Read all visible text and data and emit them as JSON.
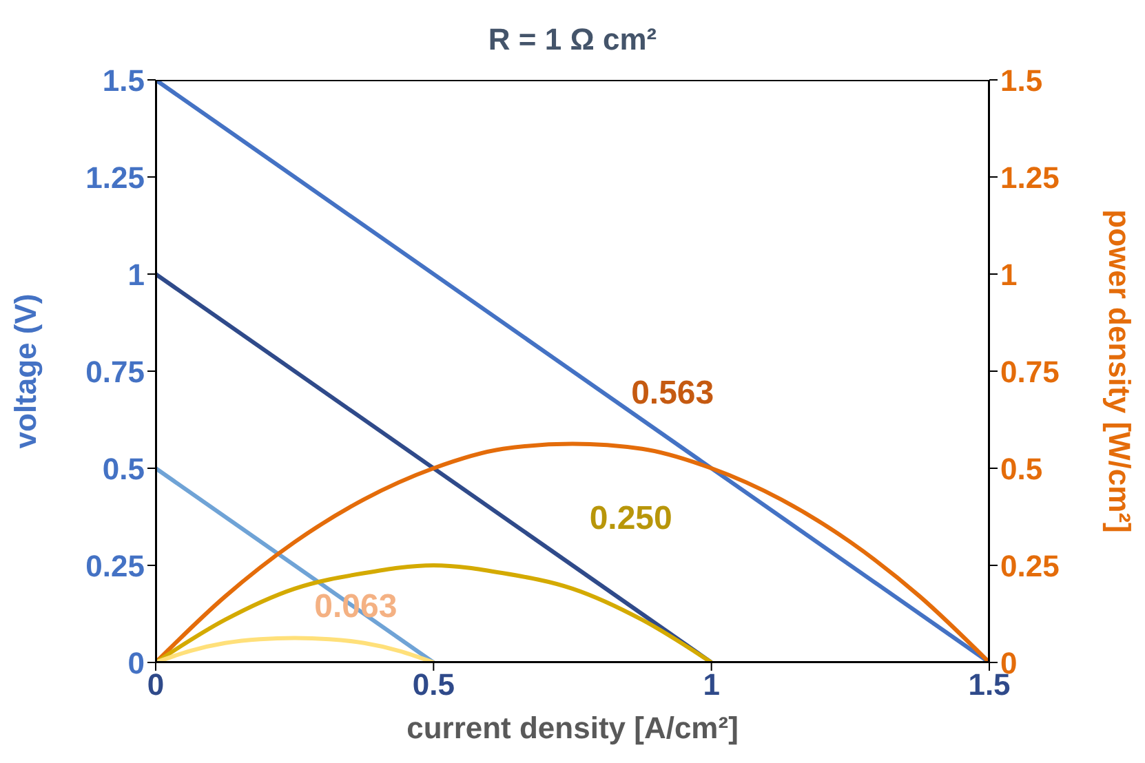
{
  "chart_data": {
    "type": "line",
    "title": "R = 1 Ω cm²",
    "xlabel": "current density [A/cm²]",
    "ylabel": "voltage (V)",
    "y2label": "power density [W/cm²]",
    "xlim": [
      0,
      1.5
    ],
    "xticks": [
      0,
      0.5,
      1,
      1.5
    ],
    "ylim": [
      0,
      1.5
    ],
    "yticks": [
      0,
      0.25,
      0.5,
      0.75,
      1,
      1.25,
      1.5
    ],
    "y2lim": [
      0,
      1.5
    ],
    "y2ticks": [
      0,
      0.25,
      0.5,
      0.75,
      1,
      1.25,
      1.5
    ],
    "grid": false,
    "marker": "none",
    "line_style": "solid",
    "series": [
      {
        "color": "#4472c4",
        "x": [
          0,
          1.5
        ],
        "values": [
          1.5,
          0
        ]
      },
      {
        "color": "#2f4a8a",
        "x": [
          0,
          1
        ],
        "values": [
          1,
          0
        ]
      },
      {
        "color": "#6fa3d6",
        "x": [
          0,
          0.5
        ],
        "values": [
          0.5,
          0
        ]
      },
      {
        "color": "#e46c0a",
        "axis": "y2",
        "x": [
          0,
          0.125,
          0.25,
          0.375,
          0.5,
          0.625,
          0.75,
          0.875,
          1,
          1.125,
          1.25,
          1.375,
          1.5
        ],
        "values": [
          0,
          0.17,
          0.31,
          0.42,
          0.5,
          0.55,
          0.563,
          0.55,
          0.5,
          0.42,
          0.31,
          0.17,
          0
        ]
      },
      {
        "color": "#d4aa00",
        "axis": "y2",
        "x": [
          0,
          0.125,
          0.25,
          0.375,
          0.5,
          0.625,
          0.75,
          0.875,
          1
        ],
        "values": [
          0,
          0.11,
          0.19,
          0.23,
          0.25,
          0.23,
          0.19,
          0.11,
          0
        ]
      },
      {
        "color": "#ffe07a",
        "axis": "y2",
        "x": [
          0,
          0.0625,
          0.125,
          0.1875,
          0.25,
          0.3125,
          0.375,
          0.4375,
          0.5
        ],
        "values": [
          0,
          0.03,
          0.05,
          0.06,
          0.063,
          0.06,
          0.05,
          0.03,
          0
        ]
      }
    ],
    "annotations": [
      "0.563",
      "0.250",
      "0.063"
    ]
  }
}
